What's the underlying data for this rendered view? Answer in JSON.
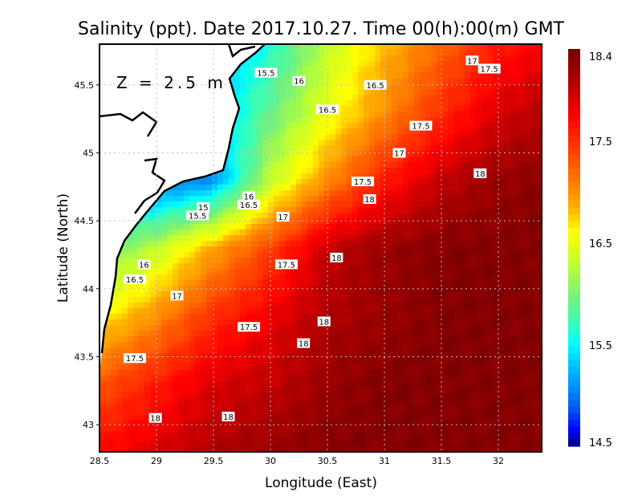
{
  "chart_data": {
    "type": "heatmap",
    "title": "Salinity (ppt). Date 2017.10.27. Time 00(h):00(m) GMT",
    "xlabel": "Longitude (East)",
    "ylabel": "Latitude (North)",
    "annotation": "Z = 2.5 m",
    "xlim": [
      28.5,
      32.38
    ],
    "ylim": [
      42.8,
      45.8
    ],
    "xticks": [
      28.5,
      29,
      29.5,
      30,
      30.5,
      31,
      31.5,
      32
    ],
    "xtick_labels": [
      "28.5",
      "29",
      "29.5",
      "30",
      "30.5",
      "31",
      "31.5",
      "32"
    ],
    "yticks": [
      43,
      43.5,
      44,
      44.5,
      45,
      45.5
    ],
    "ytick_labels": [
      "43",
      "43.5",
      "44",
      "44.5",
      "45",
      "45.5"
    ],
    "grid": true,
    "colorbar": {
      "range": [
        14.5,
        18.4
      ],
      "tick_values": [
        18.4,
        17.5,
        16.5,
        15.5,
        14.5
      ],
      "tick_labels": [
        "18.4",
        "17.5",
        "16.5",
        "15.5",
        "14.5"
      ],
      "colors": [
        "#000080",
        "#0000ff",
        "#0060f0",
        "#00c0ff",
        "#00ffff",
        "#30ffc0",
        "#70f080",
        "#c0ff30",
        "#ffff00",
        "#ffb000",
        "#ff6000",
        "#ff0000",
        "#c00000",
        "#700000"
      ],
      "color_positions": [
        0,
        0.04,
        0.1,
        0.2,
        0.26,
        0.3,
        0.37,
        0.46,
        0.54,
        0.6,
        0.7,
        0.83,
        0.9,
        1
      ]
    },
    "grid_lons": [
      28.5,
      29,
      29.5,
      30,
      30.5,
      31,
      31.5,
      32,
      32.5
    ],
    "grid_lats": [
      45.8,
      45.3,
      44.8,
      44.3,
      43.8,
      43.3,
      42.8
    ],
    "values": [
      [
        15.0,
        15.0,
        15.2,
        15.6,
        16.3,
        16.8,
        17.2,
        17.6,
        17.8
      ],
      [
        15.0,
        15.0,
        15.3,
        15.9,
        16.5,
        17.0,
        17.5,
        17.9,
        18.1
      ],
      [
        15.0,
        14.9,
        15.1,
        16.3,
        17.0,
        17.6,
        18.0,
        18.2,
        18.3
      ],
      [
        15.9,
        16.3,
        16.9,
        17.4,
        18.0,
        18.2,
        18.3,
        18.3,
        18.3
      ],
      [
        16.6,
        17.0,
        17.5,
        17.8,
        18.1,
        18.2,
        18.3,
        18.3,
        18.3
      ],
      [
        17.3,
        17.6,
        17.9,
        18.0,
        18.2,
        18.3,
        18.3,
        18.3,
        18.3
      ],
      [
        17.7,
        17.9,
        18.1,
        18.2,
        18.3,
        18.3,
        18.3,
        18.3,
        18.3
      ]
    ],
    "contour_labels": [
      {
        "text": "15.5",
        "lon": 29.96,
        "lat": 45.59
      },
      {
        "text": "16",
        "lon": 30.25,
        "lat": 45.53
      },
      {
        "text": "16.5",
        "lon": 30.92,
        "lat": 45.5
      },
      {
        "text": "17",
        "lon": 31.77,
        "lat": 45.68
      },
      {
        "text": "17.5",
        "lon": 31.92,
        "lat": 45.62
      },
      {
        "text": "16.5",
        "lon": 30.5,
        "lat": 45.32
      },
      {
        "text": "17.5",
        "lon": 31.32,
        "lat": 45.2
      },
      {
        "text": "17",
        "lon": 31.13,
        "lat": 45.0
      },
      {
        "text": "18",
        "lon": 31.84,
        "lat": 44.85
      },
      {
        "text": "17.5",
        "lon": 30.81,
        "lat": 44.79
      },
      {
        "text": "18",
        "lon": 30.87,
        "lat": 44.66
      },
      {
        "text": "15",
        "lon": 29.41,
        "lat": 44.6
      },
      {
        "text": "15.5",
        "lon": 29.36,
        "lat": 44.54
      },
      {
        "text": "16",
        "lon": 29.81,
        "lat": 44.68
      },
      {
        "text": "16.5",
        "lon": 29.81,
        "lat": 44.62
      },
      {
        "text": "17",
        "lon": 30.11,
        "lat": 44.53
      },
      {
        "text": "16",
        "lon": 28.89,
        "lat": 44.18
      },
      {
        "text": "16.5",
        "lon": 28.81,
        "lat": 44.07
      },
      {
        "text": "17.5",
        "lon": 30.14,
        "lat": 44.18
      },
      {
        "text": "18",
        "lon": 30.58,
        "lat": 44.23
      },
      {
        "text": "17",
        "lon": 29.18,
        "lat": 43.95
      },
      {
        "text": "17.5",
        "lon": 29.81,
        "lat": 43.72
      },
      {
        "text": "18",
        "lon": 30.47,
        "lat": 43.76
      },
      {
        "text": "18",
        "lon": 30.29,
        "lat": 43.6
      },
      {
        "text": "17.5",
        "lon": 28.81,
        "lat": 43.49
      },
      {
        "text": "18",
        "lon": 28.99,
        "lat": 43.05
      },
      {
        "text": "18",
        "lon": 29.63,
        "lat": 43.06
      }
    ]
  }
}
